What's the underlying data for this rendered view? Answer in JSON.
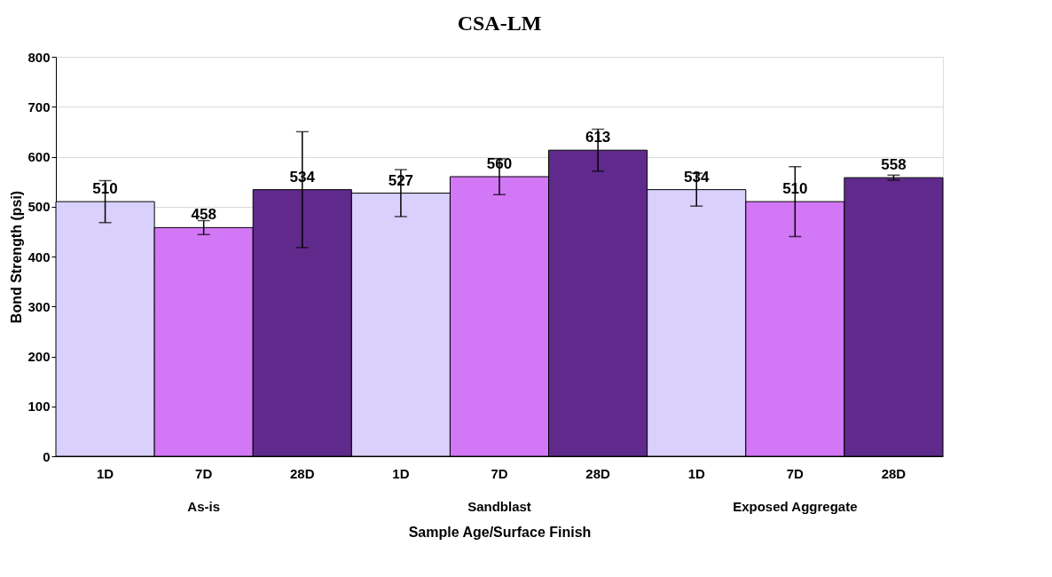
{
  "chart_data": {
    "type": "bar",
    "title": "CSA-LM",
    "xlabel": "Sample Age/Surface Finish",
    "ylabel": "Bond Strength (psi)",
    "categories": [
      "1D",
      "7D",
      "28D",
      "1D",
      "7D",
      "28D",
      "1D",
      "7D",
      "28D"
    ],
    "values": [
      510,
      458,
      534,
      527,
      560,
      613,
      534,
      510,
      558
    ],
    "colors": [
      "#d9d0fb",
      "#d277f5",
      "#5f2a8c",
      "#d9d0fb",
      "#d277f5",
      "#5f2a8c",
      "#d9d0fb",
      "#d277f5",
      "#5f2a8c"
    ],
    "errors": [
      42,
      14,
      116,
      47,
      36,
      42,
      33,
      70,
      5
    ],
    "annotations": [
      "As-is",
      "Sandblast",
      "Exposed Aggregate"
    ],
    "ylim": [
      0,
      800
    ],
    "yticks": [
      0,
      100,
      200,
      300,
      400,
      500,
      600,
      700,
      800
    ],
    "grid": "y",
    "data_labels": true
  }
}
